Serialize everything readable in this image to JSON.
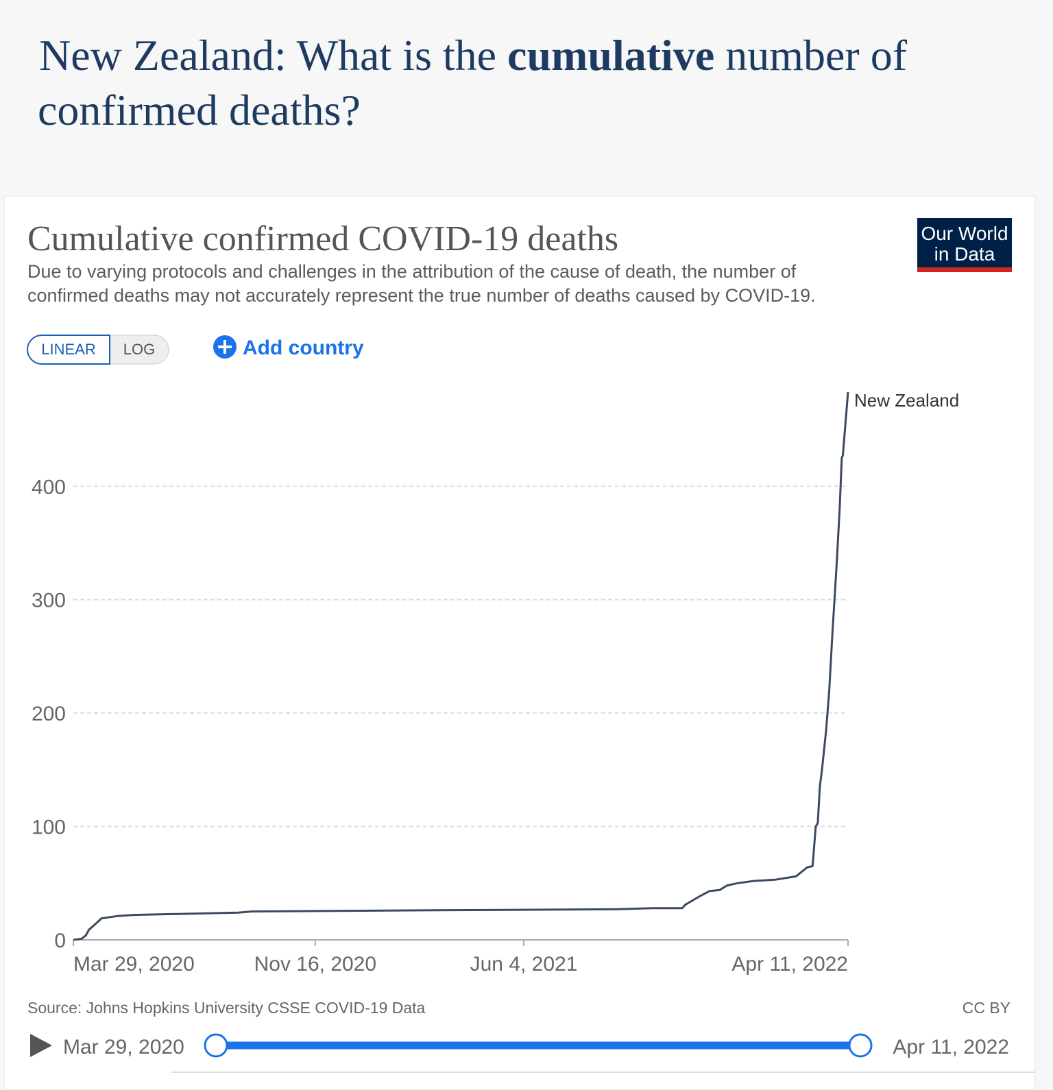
{
  "header": {
    "title": [
      "New Zealand: What is the ",
      "cumulative",
      " number of",
      "confirmed deaths?"
    ]
  },
  "logo": [
    "Our World",
    "in Data"
  ],
  "controls": {
    "linear": "LINEAR",
    "log": "LOG",
    "add": "Add country"
  },
  "source": "Source: Johns Hopkins University CSSE COVID-19 Data",
  "license": "CC BY",
  "timeline": {
    "start": "Mar 29, 2020",
    "end": "Apr 11, 2022"
  },
  "chart_data": {
    "type": "line",
    "title": "Cumulative confirmed COVID-19 deaths",
    "subtitle": [
      "Due to varying protocols and challenges in the attribution of the cause of death, the number of",
      "confirmed deaths may not accurately represent the true number of deaths caused by COVID-19."
    ],
    "log_scale": false,
    "grid": true,
    "x": [
      "2020-03-29",
      "2020-04-06",
      "2020-04-10",
      "2020-04-13",
      "2020-04-18",
      "2020-04-25",
      "2020-05-10",
      "2020-05-26",
      "2020-09-03",
      "2020-09-16",
      "2021-02-16",
      "2021-09-02",
      "2021-10-06",
      "2021-11-03",
      "2021-11-06",
      "2021-11-19",
      "2021-11-29",
      "2021-12-09",
      "2021-12-16",
      "2021-12-26",
      "2022-01-11",
      "2022-01-31",
      "2022-02-20",
      "2022-03-03",
      "2022-03-08",
      "2022-03-11",
      "2022-03-13",
      "2022-03-15",
      "2022-03-17",
      "2022-03-21",
      "2022-03-24",
      "2022-03-27",
      "2022-03-31",
      "2022-04-03",
      "2022-04-05",
      "2022-04-06",
      "2022-04-11"
    ],
    "series": [
      {
        "name": "New Zealand",
        "color": "#3b4a5e",
        "values": [
          0,
          1,
          4,
          9,
          13,
          19,
          21,
          22,
          24,
          25,
          26,
          27,
          28,
          28,
          31,
          38,
          43,
          44,
          48,
          50,
          52,
          53,
          56,
          64,
          65,
          100,
          103,
          135,
          150,
          185,
          220,
          270,
          330,
          380,
          425,
          427,
          483
        ]
      }
    ],
    "xlim": [
      "2020-03-29",
      "2022-04-11"
    ],
    "xticks": [
      {
        "value": "2020-03-29",
        "label": "Mar 29, 2020"
      },
      {
        "value": "2020-11-16",
        "label": "Nov 16, 2020"
      },
      {
        "value": "2021-06-04",
        "label": "Jun 4, 2021"
      },
      {
        "value": "2022-04-11",
        "label": "Apr 11, 2022"
      }
    ],
    "ylim": [
      0,
      483
    ],
    "yticks": [
      0,
      100,
      200,
      300,
      400
    ]
  }
}
